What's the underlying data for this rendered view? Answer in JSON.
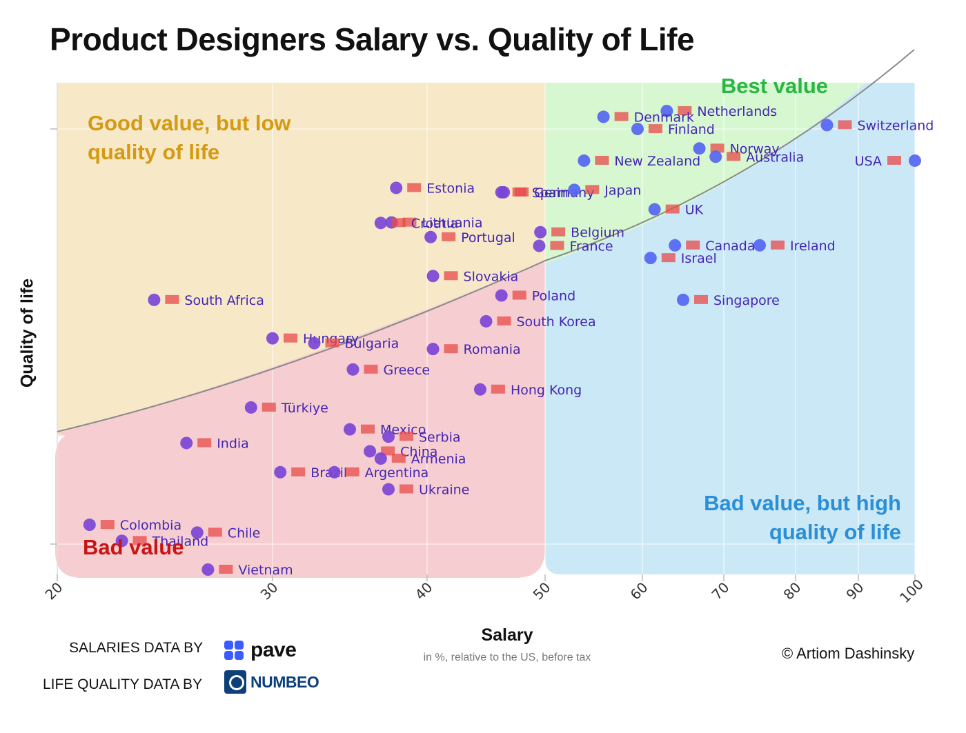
{
  "chart_data": {
    "type": "scatter",
    "title": "Product Designers Salary vs. Quality of Life",
    "xlabel": "Salary",
    "xsublabel": "in %, relative to the US, before tax",
    "ylabel": "Quality of life",
    "x_ticks": [
      "20",
      "30",
      "40",
      "50",
      "60",
      "70",
      "80",
      "90",
      "100"
    ],
    "xlim": [
      20,
      100
    ],
    "zones": {
      "good_value_low_qol": {
        "line1": "Good value, but low",
        "line2": "quality of life",
        "color": "#d49a12"
      },
      "best_value": {
        "line1": "Best value",
        "color": "#2bb544"
      },
      "bad_value_high_qol": {
        "line1": "Bad value, but high",
        "line2": "quality of life",
        "color": "#2b8fd6"
      },
      "bad_value": {
        "line1": "Bad value",
        "color": "#c81414"
      }
    },
    "points": [
      {
        "country": "USA",
        "salary": 100,
        "qol": 0.84
      },
      {
        "country": "Switzerland",
        "salary": 85,
        "qol": 0.913
      },
      {
        "country": "Ireland",
        "salary": 75,
        "qol": 0.666
      },
      {
        "country": "Netherlands",
        "salary": 63,
        "qol": 0.942
      },
      {
        "country": "Denmark",
        "salary": 56,
        "qol": 0.93
      },
      {
        "country": "Finland",
        "salary": 59.5,
        "qol": 0.905
      },
      {
        "country": "Norway",
        "salary": 67,
        "qol": 0.865
      },
      {
        "country": "Australia",
        "salary": 69,
        "qol": 0.848
      },
      {
        "country": "New Zealand",
        "salary": 54,
        "qol": 0.84
      },
      {
        "country": "Germany",
        "salary": 46.5,
        "qol": 0.775
      },
      {
        "country": "Japan",
        "salary": 53,
        "qol": 0.78
      },
      {
        "country": "Estonia",
        "salary": 38,
        "qol": 0.784
      },
      {
        "country": "Spain",
        "salary": 46.3,
        "qol": 0.775
      },
      {
        "country": "UK",
        "salary": 61.5,
        "qol": 0.74
      },
      {
        "country": "Canada",
        "salary": 64,
        "qol": 0.666
      },
      {
        "country": "Israel",
        "salary": 61,
        "qol": 0.64
      },
      {
        "country": "Singapore",
        "salary": 65,
        "qol": 0.554
      },
      {
        "country": "Lithuania",
        "salary": 37.7,
        "qol": 0.713
      },
      {
        "country": "Croatia",
        "salary": 37,
        "qol": 0.712
      },
      {
        "country": "Belgium",
        "salary": 49.6,
        "qol": 0.693
      },
      {
        "country": "France",
        "salary": 49.5,
        "qol": 0.665
      },
      {
        "country": "Portugal",
        "salary": 40.3,
        "qol": 0.683
      },
      {
        "country": "Slovakia",
        "salary": 40.5,
        "qol": 0.603
      },
      {
        "country": "Poland",
        "salary": 46.3,
        "qol": 0.563
      },
      {
        "country": "South Africa",
        "salary": 24.5,
        "qol": 0.554
      },
      {
        "country": "South Korea",
        "salary": 45,
        "qol": 0.51
      },
      {
        "country": "Hungary",
        "salary": 30,
        "qol": 0.475
      },
      {
        "country": "Bulgaria",
        "salary": 32.7,
        "qol": 0.465
      },
      {
        "country": "Romania",
        "salary": 40.5,
        "qol": 0.453
      },
      {
        "country": "Greece",
        "salary": 35.2,
        "qol": 0.411
      },
      {
        "country": "Hong Kong",
        "salary": 44.5,
        "qol": 0.37
      },
      {
        "country": "Türkiye",
        "salary": 29,
        "qol": 0.333
      },
      {
        "country": "Mexico",
        "salary": 35,
        "qol": 0.288
      },
      {
        "country": "Serbia",
        "salary": 37.5,
        "qol": 0.273
      },
      {
        "country": "India",
        "salary": 26,
        "qol": 0.26
      },
      {
        "country": "China",
        "salary": 36.3,
        "qol": 0.243
      },
      {
        "country": "Armenia",
        "salary": 37,
        "qol": 0.228
      },
      {
        "country": "Brazil",
        "salary": 30.5,
        "qol": 0.2
      },
      {
        "country": "Argentina",
        "salary": 34,
        "qol": 0.2
      },
      {
        "country": "Ukraine",
        "salary": 37.5,
        "qol": 0.165
      },
      {
        "country": "Colombia",
        "salary": 21.5,
        "qol": 0.092
      },
      {
        "country": "Chile",
        "salary": 26.5,
        "qol": 0.076
      },
      {
        "country": "Thailand",
        "salary": 23,
        "qol": 0.059
      },
      {
        "country": "Vietnam",
        "salary": 27,
        "qol": 0.0
      }
    ],
    "trend": "curve separating good value (above) from bad value (below)"
  },
  "credits": {
    "salaries_prefix": "SALARIES DATA BY",
    "salaries_brand": "pave",
    "life_prefix": "LIFE QUALITY DATA BY",
    "life_brand": "NUMBEO",
    "copyright": "© Artiom Dashinsky"
  },
  "colors": {
    "yellow_zone": "#f7e8c8",
    "green_zone": "#d6f7cf",
    "blue_zone": "#cbe8f7",
    "red_zone": "#f6cdd0",
    "dot_purple": "#7b45d6",
    "dot_blue": "#5565f2"
  }
}
